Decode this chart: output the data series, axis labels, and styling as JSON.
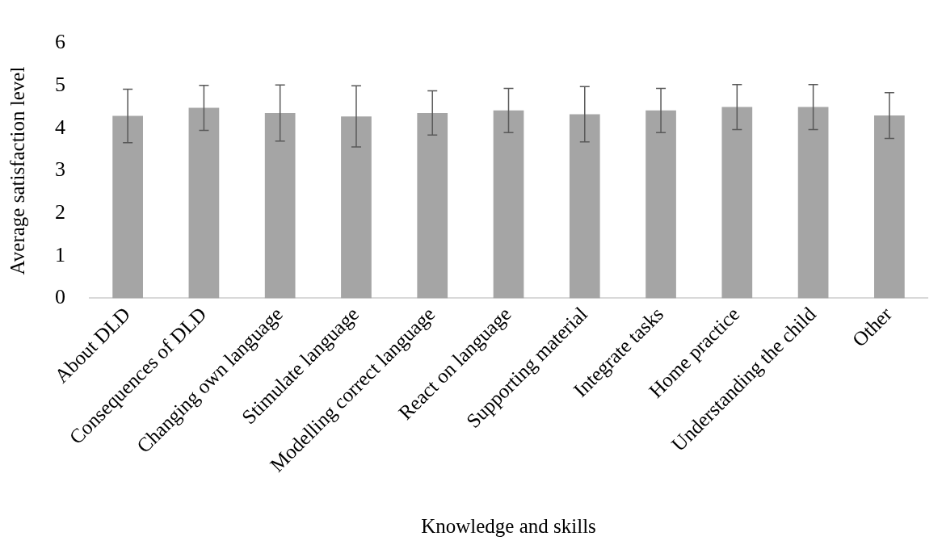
{
  "chart_data": {
    "type": "bar",
    "xlabel": "Knowledge and skills",
    "ylabel": "Average satisfaction level",
    "categories": [
      "About DLD",
      "Consequences of DLD",
      "Changing own language",
      "Stimulate language",
      "Modelling correct language",
      "React on language",
      "Supporting material",
      "Integrate tasks",
      "Home practice",
      "Understanding the child",
      "Other"
    ],
    "values": [
      4.29,
      4.48,
      4.36,
      4.28,
      4.36,
      4.42,
      4.33,
      4.42,
      4.5,
      4.5,
      4.3
    ],
    "errors": [
      0.63,
      0.53,
      0.66,
      0.72,
      0.52,
      0.52,
      0.65,
      0.52,
      0.53,
      0.53,
      0.54
    ],
    "color": "#a5a5a5",
    "ylim": [
      0,
      6
    ],
    "yticks": [
      0,
      1,
      2,
      3,
      4,
      5,
      6
    ],
    "grid": false,
    "legend": false
  }
}
